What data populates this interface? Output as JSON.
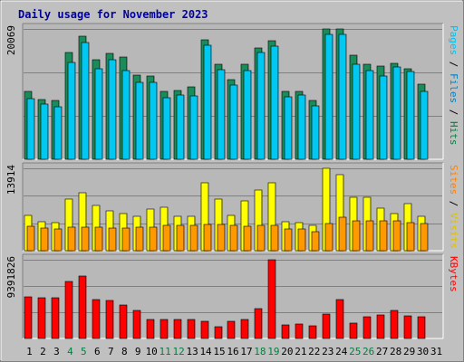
{
  "chart_data": {
    "title": "Daily usage for November 2023",
    "type": "bar",
    "colors": {
      "background": "#c0c0c0",
      "plot_bg": "#b8b8b8",
      "title": "#0000a0",
      "hits": "#1a8c5a",
      "files": "#00c8f0",
      "pages": "#00a8d8",
      "visits": "#ffff00",
      "sites": "#ff9900",
      "kbytes": "#ff0000",
      "separator": "#000000",
      "weekend_day": "#008040",
      "weekday": "#000000"
    },
    "days": [
      "1",
      "2",
      "3",
      "4",
      "5",
      "6",
      "7",
      "8",
      "9",
      "10",
      "11",
      "12",
      "13",
      "14",
      "15",
      "16",
      "17",
      "18",
      "19",
      "20",
      "21",
      "22",
      "23",
      "24",
      "25",
      "26",
      "27",
      "28",
      "29",
      "30",
      "31"
    ],
    "weekend_days": [
      "4",
      "5",
      "11",
      "12",
      "18",
      "19",
      "25",
      "26"
    ],
    "panels": [
      {
        "id": "hits-files-pages",
        "ymax_label": "20069",
        "ymax": 20069,
        "right_label": {
          "parts": [
            {
              "text": "Pages",
              "color": "#00c0f0"
            },
            {
              "text": " / ",
              "color": "#000000"
            },
            {
              "text": "Files",
              "color": "#0080c0"
            },
            {
              "text": " / ",
              "color": "#000000"
            },
            {
              "text": "Hits",
              "color": "#008040"
            }
          ]
        },
        "series": [
          {
            "key": "hits",
            "values": [
              10400,
              9200,
              9000,
              16500,
              18900,
              15300,
              16300,
              15800,
              13000,
              12800,
              10500,
              10600,
              11100,
              18400,
              14700,
              12200,
              14600,
              17100,
              18200,
              10400,
              10500,
              9000,
              20069,
              20000,
              16000,
              14700,
              14300,
              14800,
              13900,
              11500
            ]
          },
          {
            "key": "files",
            "values": [
              9400,
              8500,
              8100,
              14900,
              18000,
              13900,
              15300,
              13600,
              11900,
              11800,
              9500,
              9900,
              9700,
              17600,
              13800,
              11400,
              13700,
              16500,
              17400,
              9600,
              9900,
              8200,
              19200,
              19200,
              14700,
              13700,
              12800,
              14200,
              13500,
              10500
            ]
          }
        ]
      },
      {
        "id": "visits-sites",
        "ymax_label": "13914",
        "ymax": 13914,
        "right_label": {
          "parts": [
            {
              "text": "Sites",
              "color": "#ff8000"
            },
            {
              "text": " / ",
              "color": "#000000"
            },
            {
              "text": "Visits",
              "color": "#e0c000"
            }
          ]
        },
        "series": [
          {
            "key": "visits",
            "values": [
              5900,
              4900,
              4700,
              8700,
              9800,
              7600,
              6700,
              6200,
              5800,
              7100,
              7400,
              5800,
              5800,
              11400,
              8700,
              5900,
              8400,
              10200,
              11500,
              4900,
              4800,
              4300,
              13914,
              12900,
              9000,
              9000,
              7200,
              6200,
              8000,
              5800
            ]
          },
          {
            "key": "sites",
            "values": [
              4100,
              3800,
              3600,
              3900,
              3900,
              3900,
              3800,
              3800,
              3900,
              3900,
              4300,
              4300,
              4300,
              4500,
              4500,
              4300,
              4200,
              4300,
              4300,
              3600,
              3600,
              3200,
              4600,
              5600,
              5000,
              5100,
              5000,
              5000,
              4800,
              4600
            ]
          }
        ]
      },
      {
        "id": "kbytes",
        "ymax_label": "9391826",
        "ymax": 9391826,
        "right_label": {
          "parts": [
            {
              "text": "KBytes",
              "color": "#ff0000"
            }
          ]
        },
        "series": [
          {
            "key": "kbytes",
            "values": [
              5000000,
              4900000,
              4900000,
              6800000,
              7500000,
              4600000,
              4500000,
              4000000,
              3300000,
              2300000,
              2300000,
              2300000,
              2300000,
              2100000,
              1400000,
              2000000,
              2300000,
              3600000,
              9391826,
              1600000,
              1700000,
              1500000,
              2900000,
              4600000,
              1800000,
              2600000,
              2800000,
              3300000,
              2700000,
              2600000
            ]
          }
        ]
      }
    ]
  }
}
